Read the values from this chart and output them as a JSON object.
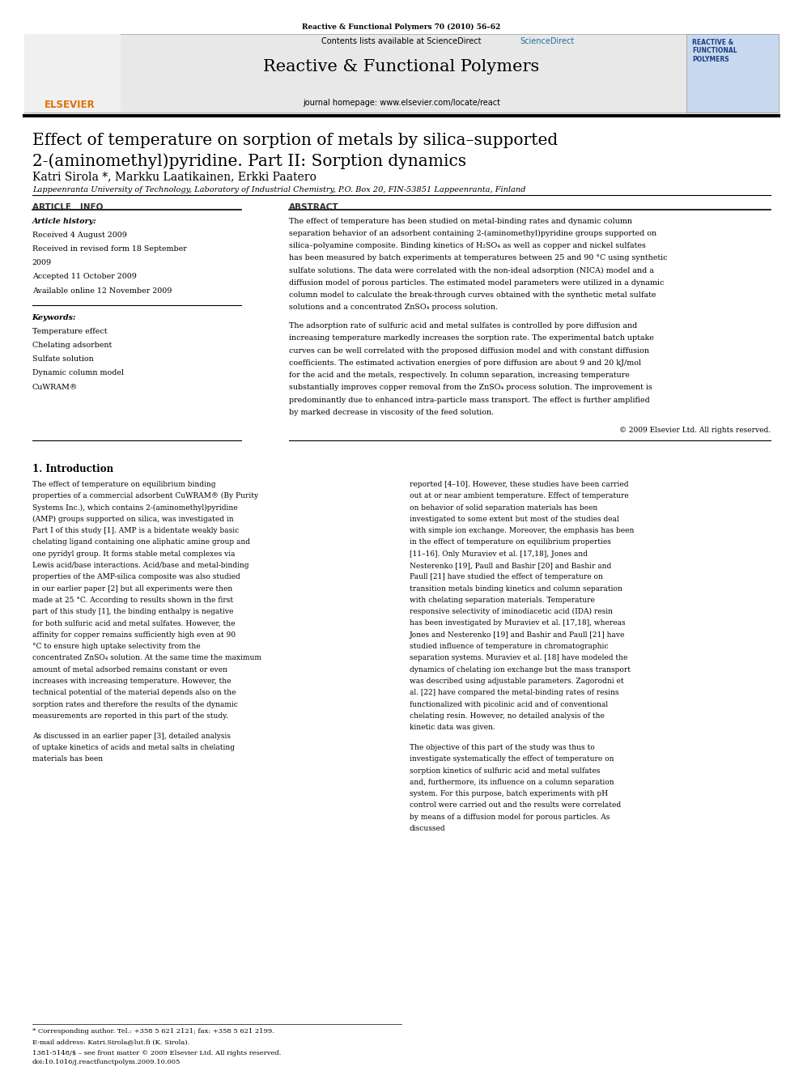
{
  "page_width": 9.92,
  "page_height": 13.23,
  "bg_color": "#ffffff",
  "top_journal_ref": "Reactive & Functional Polymers 70 (2010) 56–62",
  "journal_name": "Reactive & Functional Polymers",
  "journal_homepage": "journal homepage: www.elsevier.com/locate/react",
  "contents_text": "Contents lists available at ScienceDirect",
  "sciencedirect_color": "#1a6fa0",
  "header_bg": "#e8e8e8",
  "paper_title_line1": "Effect of temperature on sorption of metals by silica–supported",
  "paper_title_line2": "2-(aminomethyl)pyridine. Part II: Sorption dynamics",
  "authors": "Katri Sirola *, Markku Laatikainen, Erkki Paatero",
  "affiliation": "Lappeenranta University of Technology, Laboratory of Industrial Chemistry, P.O. Box 20, FIN-53851 Lappeenranta, Finland",
  "article_info_header": "ARTICLE   INFO",
  "abstract_header": "ABSTRACT",
  "article_history_label": "Article history:",
  "received1": "Received 4 August 2009",
  "received2": "Received in revised form 18 September",
  "received2b": "2009",
  "accepted": "Accepted 11 October 2009",
  "available": "Available online 12 November 2009",
  "keywords_label": "Keywords:",
  "keywords": [
    "Temperature effect",
    "Chelating adsorbent",
    "Sulfate solution",
    "Dynamic column model",
    "CuWRAM®"
  ],
  "abstract_para1": "The effect of temperature has been studied on metal-binding rates and dynamic column separation behavior of an adsorbent containing 2-(aminomethyl)pyridine groups supported on silica–polyamine composite. Binding kinetics of H₂SO₄ as well as copper and nickel sulfates has been measured by batch experiments at temperatures between 25 and 90 °C using synthetic sulfate solutions. The data were correlated with the non-ideal adsorption (NICA) model and a diffusion model of porous particles. The estimated model parameters were utilized in a dynamic column model to calculate the break-through curves obtained with the synthetic metal sulfate solutions and a concentrated ZnSO₄ process solution.",
  "abstract_para2": "The adsorption rate of sulfuric acid and metal sulfates is controlled by pore diffusion and increasing temperature markedly increases the sorption rate. The experimental batch uptake curves can be well correlated with the proposed diffusion model and with constant diffusion coefficients. The estimated activation energies of pore diffusion are about 9 and 20 kJ/mol for the acid and the metals, respectively. In column separation, increasing temperature substantially improves copper removal from the ZnSO₄ process solution. The improvement is predominantly due to enhanced intra-particle mass transport. The effect is further amplified by marked decrease in viscosity of the feed solution.",
  "copyright": "© 2009 Elsevier Ltd. All rights reserved.",
  "section1_title": "1. Introduction",
  "intro_para1": "The effect of temperature on equilibrium binding properties of a commercial adsorbent CuWRAM® (By Purity Systems Inc.), which contains 2-(aminomethyl)pyridine (AMP) groups supported on silica, was investigated in Part I of this study [1]. AMP is a bidentate weakly basic chelating ligand containing one aliphatic amine group and one pyridyl group. It forms stable metal complexes via Lewis acid/base interactions. Acid/base and metal-binding properties of the AMP-silica composite was also studied in our earlier paper [2] but all experiments were then made at 25 °C. According to results shown in the first part of this study [1], the binding enthalpy is negative for both sulfuric acid and metal sulfates. However, the affinity for copper remains sufficiently high even at 90 °C to ensure high uptake selectivity from the concentrated ZnSO₄ solution. At the same time the maximum amount of metal adsorbed remains constant or even increases with increasing temperature. However, the technical potential of the material depends also on the sorption rates and therefore the results of the dynamic measurements are reported in this part of the study.",
  "intro_para2": "As discussed in an earlier paper [3], detailed analysis of uptake kinetics of acids and metal salts in chelating materials has been",
  "intro_right_col1": "reported [4–10]. However, these studies have been carried out at or near ambient temperature. Effect of temperature on behavior of solid separation materials has been investigated to some extent but most of the studies deal with simple ion exchange. Moreover, the emphasis has been in the effect of temperature on equilibrium properties [11–16]. Only Muraviev et al. [17,18], Jones and Nesterenko [19], Paull and Bashir [20] and Bashir and Paull [21] have studied the effect of temperature on transition metals binding kinetics and column separation with chelating separation materials. Temperature responsive selectivity of iminodiacetic acid (IDA) resin has been investigated by Muraviev et al. [17,18], whereas Jones and Nesterenko [19] and Bashir and Paull [21] have studied influence of temperature in chromatographic separation systems. Muraviev et al. [18] have modeled the dynamics of chelating ion exchange but the mass transport was described using adjustable parameters. Zagorodni et al. [22] have compared the metal-binding rates of resins functionalized with picolinic acid and of conventional chelating resin. However, no detailed analysis of the kinetic data was given.",
  "intro_right_col2": "The objective of this part of the study was thus to investigate systematically the effect of temperature on sorption kinetics of sulfuric acid and metal sulfates and, furthermore, its influence on a column separation system. For this purpose, batch experiments with pH control were carried out and the results were correlated by means of a diffusion model for porous particles. As discussed",
  "footer_left": "* Corresponding author. Tel.: +358 5 621 2121; fax: +358 5 621 2199.",
  "footer_email": "E-mail address: Katri.Sirola@lut.fi (K. Sirola).",
  "footer_issn": "1381-5148/$ – see front matter © 2009 Elsevier Ltd. All rights reserved.",
  "footer_doi": "doi:10.1016/j.reactfunctpolym.2009.10.005"
}
